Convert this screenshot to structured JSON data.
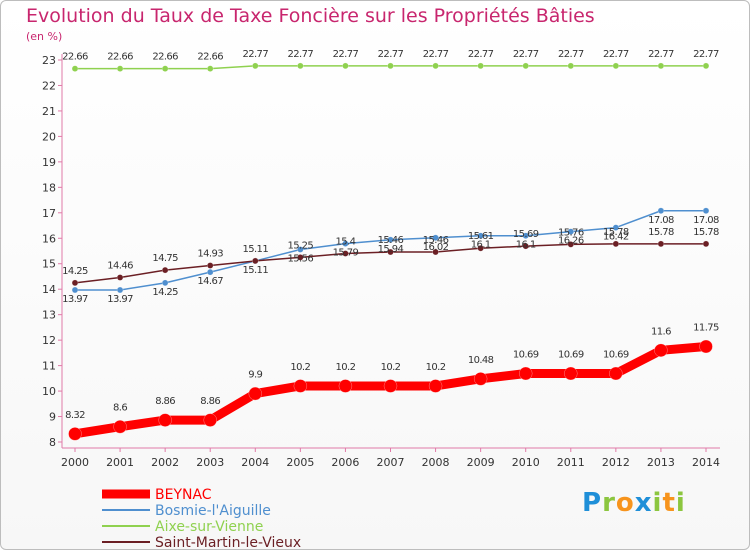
{
  "chart_data": {
    "type": "line",
    "title": "Evolution du Taux de Taxe Foncière sur les Propriétés Bâties",
    "subtitle": "(en %)",
    "x": [
      "2000",
      "2001",
      "2002",
      "2003",
      "2004",
      "2005",
      "2006",
      "2007",
      "2008",
      "2009",
      "2010",
      "2011",
      "2012",
      "2013",
      "2014"
    ],
    "ylim": [
      8,
      23
    ],
    "yticks": [
      8,
      9,
      10,
      11,
      12,
      13,
      14,
      15,
      16,
      17,
      18,
      19,
      20,
      21,
      22,
      23
    ],
    "grid": false,
    "legend_position": "bottom-left",
    "series": [
      {
        "name": "BEYNAC",
        "color": "#ff0000",
        "values": [
          8.32,
          8.6,
          8.86,
          8.86,
          9.9,
          10.2,
          10.2,
          10.2,
          10.2,
          10.48,
          10.69,
          10.69,
          10.69,
          11.6,
          11.75
        ]
      },
      {
        "name": "Bosmie-l'Aiguille",
        "color": "#4f8fcf",
        "values": [
          13.97,
          13.97,
          14.25,
          14.67,
          15.11,
          15.56,
          15.79,
          15.94,
          16.02,
          16.1,
          16.1,
          16.26,
          16.42,
          17.08,
          17.08
        ]
      },
      {
        "name": "Aixe-sur-Vienne",
        "color": "#8fd14f",
        "values": [
          22.66,
          22.66,
          22.66,
          22.66,
          22.77,
          22.77,
          22.77,
          22.77,
          22.77,
          22.77,
          22.77,
          22.77,
          22.77,
          22.77,
          22.77
        ]
      },
      {
        "name": "Saint-Martin-le-Vieux",
        "color": "#6b1f24",
        "values": [
          14.25,
          14.46,
          14.75,
          14.93,
          15.11,
          15.25,
          15.4,
          15.46,
          15.46,
          15.61,
          15.69,
          15.76,
          15.78,
          15.78,
          15.78
        ]
      }
    ]
  },
  "logo": {
    "letters": [
      "P",
      "r",
      "o",
      "x",
      "i",
      "t",
      "i"
    ],
    "colors": [
      "#1f8fd8",
      "#8cc63f",
      "#f7941d",
      "#1f8fd8",
      "#8cc63f",
      "#f7941d",
      "#8cc63f"
    ]
  }
}
